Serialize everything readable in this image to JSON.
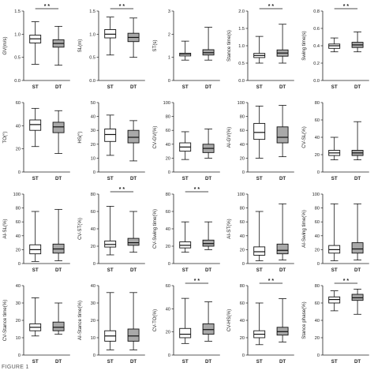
{
  "figure_label": "FIGURE 1",
  "chart_data": [
    {
      "type": "boxplot",
      "ylabel": "GV(m/s)",
      "yticks": [
        "0.0",
        "0.5",
        "1.0",
        "1.5"
      ],
      "ylim": [
        0,
        1.5
      ],
      "categories": [
        "ST",
        "DT"
      ],
      "significance": "* *",
      "boxes": [
        {
          "min": 0.35,
          "q1": 0.81,
          "median": 0.9,
          "q3": 0.98,
          "max": 1.27,
          "fill": "#ffffff"
        },
        {
          "min": 0.33,
          "q1": 0.72,
          "median": 0.8,
          "q3": 0.88,
          "max": 1.17,
          "fill": "#a9a9a9"
        }
      ]
    },
    {
      "type": "boxplot",
      "ylabel": "SL(m)",
      "yticks": [
        "0.0",
        "0.5",
        "1.0",
        "1.5"
      ],
      "ylim": [
        0,
        1.5
      ],
      "categories": [
        "ST",
        "DT"
      ],
      "significance": "* *",
      "boxes": [
        {
          "min": 0.55,
          "q1": 0.92,
          "median": 1.0,
          "q3": 1.1,
          "max": 1.37,
          "fill": "#ffffff"
        },
        {
          "min": 0.5,
          "q1": 0.84,
          "median": 0.93,
          "q3": 1.02,
          "max": 1.35,
          "fill": "#a9a9a9"
        }
      ]
    },
    {
      "type": "boxplot",
      "ylabel": "ST(s)",
      "yticks": [
        "0",
        "1",
        "2",
        "3"
      ],
      "ylim": [
        0,
        3
      ],
      "categories": [
        "ST",
        "DT"
      ],
      "significance": "",
      "boxes": [
        {
          "min": 0.88,
          "q1": 1.06,
          "median": 1.13,
          "q3": 1.18,
          "max": 1.7,
          "fill": "#ffffff"
        },
        {
          "min": 0.88,
          "q1": 1.1,
          "median": 1.2,
          "q3": 1.33,
          "max": 2.3,
          "fill": "#a9a9a9"
        }
      ]
    },
    {
      "type": "boxplot",
      "ylabel": "Stance time(s)",
      "yticks": [
        "0.0",
        "0.5",
        "1.0",
        "1.5",
        "2.0"
      ],
      "ylim": [
        0,
        2
      ],
      "categories": [
        "ST",
        "DT"
      ],
      "significance": "* *",
      "boxes": [
        {
          "min": 0.5,
          "q1": 0.66,
          "median": 0.72,
          "q3": 0.78,
          "max": 1.27,
          "fill": "#ffffff"
        },
        {
          "min": 0.5,
          "q1": 0.7,
          "median": 0.79,
          "q3": 0.88,
          "max": 1.62,
          "fill": "#a9a9a9"
        }
      ]
    },
    {
      "type": "boxplot",
      "ylabel": "Swing time(s)",
      "yticks": [
        "0.0",
        "0.2",
        "0.4",
        "0.6",
        "0.8"
      ],
      "ylim": [
        0,
        0.8
      ],
      "categories": [
        "ST",
        "DT"
      ],
      "significance": "* *",
      "boxes": [
        {
          "min": 0.33,
          "q1": 0.37,
          "median": 0.4,
          "q3": 0.42,
          "max": 0.49,
          "fill": "#ffffff"
        },
        {
          "min": 0.33,
          "q1": 0.38,
          "median": 0.41,
          "q3": 0.44,
          "max": 0.56,
          "fill": "#a9a9a9"
        }
      ]
    },
    {
      "type": "boxplot",
      "ylabel": "TO(°)",
      "yticks": [
        "0",
        "20",
        "40",
        "60"
      ],
      "ylim": [
        0,
        60
      ],
      "categories": [
        "ST",
        "DT"
      ],
      "significance": "",
      "boxes": [
        {
          "min": 22,
          "q1": 36,
          "median": 41,
          "q3": 45,
          "max": 55,
          "fill": "#ffffff"
        },
        {
          "min": 16,
          "q1": 34,
          "median": 39,
          "q3": 43,
          "max": 53,
          "fill": "#a9a9a9"
        }
      ]
    },
    {
      "type": "boxplot",
      "ylabel": "HS(°)",
      "yticks": [
        "0",
        "10",
        "20",
        "30",
        "40",
        "50"
      ],
      "ylim": [
        0,
        50
      ],
      "categories": [
        "ST",
        "DT"
      ],
      "significance": "",
      "boxes": [
        {
          "min": 12,
          "q1": 22,
          "median": 27,
          "q3": 31,
          "max": 41,
          "fill": "#ffffff"
        },
        {
          "min": 8,
          "q1": 21,
          "median": 25,
          "q3": 30,
          "max": 37,
          "fill": "#a9a9a9"
        }
      ]
    },
    {
      "type": "boxplot",
      "ylabel": "CV-GV(%)",
      "yticks": [
        "0",
        "20",
        "40",
        "60",
        "80",
        "100"
      ],
      "ylim": [
        0,
        100
      ],
      "categories": [
        "ST",
        "DT"
      ],
      "significance": "",
      "boxes": [
        {
          "min": 18,
          "q1": 30,
          "median": 36,
          "q3": 42,
          "max": 58,
          "fill": "#ffffff"
        },
        {
          "min": 20,
          "q1": 28,
          "median": 34,
          "q3": 40,
          "max": 62,
          "fill": "#a9a9a9"
        }
      ]
    },
    {
      "type": "boxplot",
      "ylabel": "AI-GV(%)",
      "yticks": [
        "0",
        "20",
        "40",
        "60",
        "80",
        "100"
      ],
      "ylim": [
        0,
        100
      ],
      "categories": [
        "ST",
        "DT"
      ],
      "significance": "",
      "boxes": [
        {
          "min": 20,
          "q1": 47,
          "median": 57,
          "q3": 70,
          "max": 95,
          "fill": "#ffffff"
        },
        {
          "min": 22,
          "q1": 42,
          "median": 50,
          "q3": 65,
          "max": 96,
          "fill": "#a9a9a9"
        }
      ]
    },
    {
      "type": "boxplot",
      "ylabel": "CV-SL(%)",
      "yticks": [
        "0",
        "20",
        "40",
        "60",
        "80"
      ],
      "ylim": [
        0,
        80
      ],
      "categories": [
        "ST",
        "DT"
      ],
      "significance": "",
      "boxes": [
        {
          "min": 14,
          "q1": 19,
          "median": 22,
          "q3": 25,
          "max": 40,
          "fill": "#ffffff"
        },
        {
          "min": 14,
          "q1": 19,
          "median": 22,
          "q3": 25,
          "max": 58,
          "fill": "#a9a9a9"
        }
      ]
    },
    {
      "type": "boxplot",
      "ylabel": "AI-SL(%)",
      "yticks": [
        "0",
        "20",
        "40",
        "60",
        "80",
        "100"
      ],
      "ylim": [
        0,
        100
      ],
      "categories": [
        "ST",
        "DT"
      ],
      "significance": "",
      "boxes": [
        {
          "min": 3,
          "q1": 14,
          "median": 20,
          "q3": 27,
          "max": 75,
          "fill": "#ffffff"
        },
        {
          "min": 4,
          "q1": 15,
          "median": 21,
          "q3": 28,
          "max": 78,
          "fill": "#a9a9a9"
        }
      ]
    },
    {
      "type": "boxplot",
      "ylabel": "CV-ST(%)",
      "yticks": [
        "0",
        "20",
        "40",
        "60",
        "80"
      ],
      "ylim": [
        0,
        80
      ],
      "categories": [
        "ST",
        "DT"
      ],
      "significance": "* *",
      "boxes": [
        {
          "min": 10,
          "q1": 19,
          "median": 22,
          "q3": 26,
          "max": 66,
          "fill": "#ffffff"
        },
        {
          "min": 13,
          "q1": 21,
          "median": 24,
          "q3": 29,
          "max": 60,
          "fill": "#a9a9a9"
        }
      ]
    },
    {
      "type": "boxplot",
      "ylabel": "CV-Swing time(%)",
      "yticks": [
        "0",
        "20",
        "40",
        "60",
        "80"
      ],
      "ylim": [
        0,
        80
      ],
      "categories": [
        "ST",
        "DT"
      ],
      "significance": "* *",
      "boxes": [
        {
          "min": 13,
          "q1": 18,
          "median": 21,
          "q3": 25,
          "max": 48,
          "fill": "#ffffff"
        },
        {
          "min": 16,
          "q1": 20,
          "median": 23,
          "q3": 27,
          "max": 48,
          "fill": "#a9a9a9"
        }
      ]
    },
    {
      "type": "boxplot",
      "ylabel": "AI-ST(%)",
      "yticks": [
        "0",
        "20",
        "40",
        "60",
        "80",
        "100"
      ],
      "ylim": [
        0,
        100
      ],
      "categories": [
        "ST",
        "DT"
      ],
      "significance": "",
      "boxes": [
        {
          "min": 4,
          "q1": 12,
          "median": 17,
          "q3": 24,
          "max": 75,
          "fill": "#ffffff"
        },
        {
          "min": 5,
          "q1": 14,
          "median": 19,
          "q3": 28,
          "max": 86,
          "fill": "#a9a9a9"
        }
      ]
    },
    {
      "type": "boxplot",
      "ylabel": "AI-Swing time(%)",
      "yticks": [
        "0",
        "20",
        "40",
        "60",
        "80",
        "100"
      ],
      "ylim": [
        0,
        100
      ],
      "categories": [
        "ST",
        "DT"
      ],
      "significance": "",
      "boxes": [
        {
          "min": 4,
          "q1": 15,
          "median": 20,
          "q3": 26,
          "max": 86,
          "fill": "#ffffff"
        },
        {
          "min": 5,
          "q1": 15,
          "median": 21,
          "q3": 30,
          "max": 86,
          "fill": "#a9a9a9"
        }
      ]
    },
    {
      "type": "boxplot",
      "ylabel": "CV-Stance time(%)",
      "yticks": [
        "0",
        "10",
        "20",
        "30",
        "40"
      ],
      "ylim": [
        0,
        40
      ],
      "categories": [
        "ST",
        "DT"
      ],
      "significance": "",
      "boxes": [
        {
          "min": 11,
          "q1": 14,
          "median": 16,
          "q3": 18,
          "max": 33,
          "fill": "#ffffff"
        },
        {
          "min": 12,
          "q1": 14,
          "median": 16,
          "q3": 19,
          "max": 30,
          "fill": "#a9a9a9"
        }
      ]
    },
    {
      "type": "boxplot",
      "ylabel": "AI-Stance time(%)",
      "yticks": [
        "0",
        "10",
        "20",
        "30",
        "40"
      ],
      "ylim": [
        0,
        40
      ],
      "categories": [
        "ST",
        "DT"
      ],
      "significance": "",
      "boxes": [
        {
          "min": 3,
          "q1": 8,
          "median": 11,
          "q3": 14,
          "max": 36,
          "fill": "#ffffff"
        },
        {
          "min": 3,
          "q1": 8,
          "median": 11,
          "q3": 15,
          "max": 36,
          "fill": "#a9a9a9"
        }
      ]
    },
    {
      "type": "boxplot",
      "ylabel": "CV-TO(%)",
      "yticks": [
        "0",
        "20",
        "40",
        "60"
      ],
      "ylim": [
        0,
        60
      ],
      "categories": [
        "ST",
        "DT"
      ],
      "significance": "* *",
      "boxes": [
        {
          "min": 10,
          "q1": 15,
          "median": 18,
          "q3": 23,
          "max": 49,
          "fill": "#ffffff"
        },
        {
          "min": 12,
          "q1": 18,
          "median": 22,
          "q3": 27,
          "max": 46,
          "fill": "#a9a9a9"
        }
      ]
    },
    {
      "type": "boxplot",
      "ylabel": "CV-HS(%)",
      "yticks": [
        "0",
        "20",
        "40",
        "60",
        "80"
      ],
      "ylim": [
        0,
        80
      ],
      "categories": [
        "ST",
        "DT"
      ],
      "significance": "* *",
      "boxes": [
        {
          "min": 12,
          "q1": 20,
          "median": 24,
          "q3": 28,
          "max": 60,
          "fill": "#ffffff"
        },
        {
          "min": 15,
          "q1": 23,
          "median": 27,
          "q3": 32,
          "max": 65,
          "fill": "#a9a9a9"
        }
      ]
    },
    {
      "type": "boxplot",
      "ylabel": "Stance phase(%)",
      "yticks": [
        "0",
        "20",
        "40",
        "60",
        "80"
      ],
      "ylim": [
        0,
        80
      ],
      "categories": [
        "ST",
        "DT"
      ],
      "significance": "* *",
      "boxes": [
        {
          "min": 51,
          "q1": 60,
          "median": 64,
          "q3": 67,
          "max": 74,
          "fill": "#ffffff"
        },
        {
          "min": 47,
          "q1": 63,
          "median": 66,
          "q3": 70,
          "max": 76,
          "fill": "#a9a9a9"
        }
      ]
    }
  ]
}
